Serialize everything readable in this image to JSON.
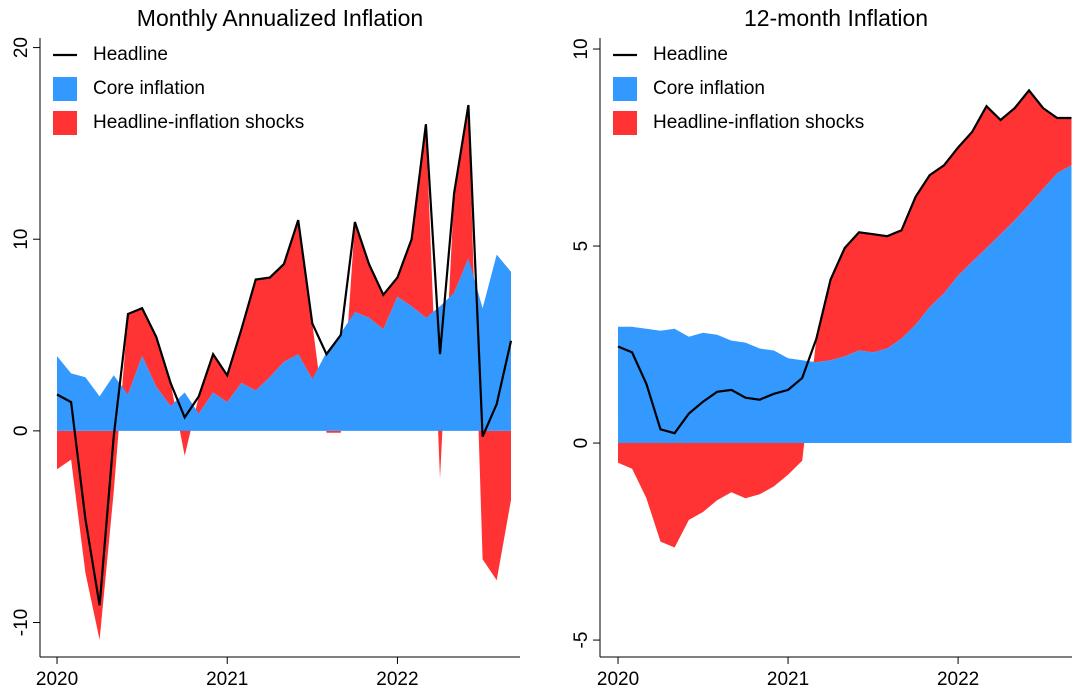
{
  "chart_data": [
    {
      "type": "area",
      "title": "Monthly Annualized Inflation",
      "legend": "upper left",
      "grid": false,
      "x": [
        2020,
        2020.083,
        2020.167,
        2020.25,
        2020.333,
        2020.417,
        2020.5,
        2020.583,
        2020.667,
        2020.75,
        2020.833,
        2020.917,
        2021,
        2021.083,
        2021.167,
        2021.25,
        2021.333,
        2021.417,
        2021.5,
        2021.583,
        2021.667,
        2021.75,
        2021.833,
        2021.917,
        2022,
        2022.083,
        2022.167,
        2022.25,
        2022.333,
        2022.417,
        2022.5,
        2022.583,
        2022.667
      ],
      "xlim": [
        2019.9,
        2022.72
      ],
      "xticks": [
        2020,
        2021,
        2022
      ],
      "ylim": [
        -11.8,
        20.5
      ],
      "yticks": [
        -10,
        0,
        10,
        20
      ],
      "series": [
        {
          "name": "Headline",
          "type": "line",
          "color": "#000000",
          "values": [
            1.9,
            1.5,
            -4.6,
            -9.1,
            -0.3,
            6.1,
            6.4,
            4.9,
            2.5,
            0.7,
            1.8,
            4.0,
            2.9,
            5.3,
            7.9,
            8.0,
            8.7,
            11.0,
            5.6,
            4.0,
            5.0,
            10.9,
            8.7,
            7.1,
            8.0,
            10.0,
            16.0,
            4.0,
            12.4,
            17.0,
            -0.3,
            1.4,
            4.7
          ]
        },
        {
          "name": "Core inflation",
          "type": "area",
          "color": "#3399ff",
          "values": [
            3.9,
            3.0,
            2.8,
            1.8,
            2.9,
            1.9,
            3.9,
            2.3,
            1.3,
            2.0,
            0.9,
            2.0,
            1.5,
            2.5,
            2.1,
            2.8,
            3.6,
            4.0,
            2.7,
            4.1,
            5.1,
            6.2,
            5.9,
            5.3,
            7.0,
            6.5,
            5.9,
            6.5,
            7.2,
            9.0,
            6.4,
            9.2,
            8.3
          ]
        },
        {
          "name": "Headline-inflation shocks",
          "type": "stacked-area",
          "color": "#ff3333",
          "values": [
            -2.0,
            -1.5,
            -7.4,
            -10.9,
            -3.2,
            4.2,
            2.5,
            2.6,
            1.2,
            -1.3,
            0.9,
            2.0,
            1.4,
            2.8,
            5.8,
            5.2,
            5.1,
            7.0,
            2.9,
            -0.1,
            -0.1,
            4.7,
            2.8,
            1.8,
            1.0,
            3.5,
            10.1,
            -2.5,
            5.2,
            8.0,
            -6.7,
            -7.8,
            -3.6
          ]
        }
      ]
    },
    {
      "type": "area",
      "title": "12-month Inflation",
      "legend": "upper left",
      "grid": false,
      "x": [
        2020,
        2020.083,
        2020.167,
        2020.25,
        2020.333,
        2020.417,
        2020.5,
        2020.583,
        2020.667,
        2020.75,
        2020.833,
        2020.917,
        2021,
        2021.083,
        2021.167,
        2021.25,
        2021.333,
        2021.417,
        2021.5,
        2021.583,
        2021.667,
        2021.75,
        2021.833,
        2021.917,
        2022,
        2022.083,
        2022.167,
        2022.25,
        2022.333,
        2022.417,
        2022.5,
        2022.583,
        2022.667
      ],
      "xlim": [
        2019.894,
        2022.67
      ],
      "xticks": [
        2020,
        2021,
        2022
      ],
      "ylim": [
        -5.43,
        10.28
      ],
      "yticks": [
        -5,
        0,
        5,
        10
      ],
      "series": [
        {
          "name": "Headline",
          "type": "line",
          "color": "#000000",
          "values": [
            2.45,
            2.3,
            1.5,
            0.35,
            0.25,
            0.75,
            1.05,
            1.3,
            1.35,
            1.15,
            1.1,
            1.25,
            1.35,
            1.65,
            2.65,
            4.15,
            4.95,
            5.35,
            5.3,
            5.25,
            5.4,
            6.25,
            6.8,
            7.05,
            7.5,
            7.9,
            8.55,
            8.2,
            8.5,
            8.95,
            8.5,
            8.25,
            8.25
          ]
        },
        {
          "name": "Core inflation",
          "type": "area",
          "color": "#3399ff",
          "values": [
            2.95,
            2.95,
            2.9,
            2.85,
            2.9,
            2.7,
            2.8,
            2.75,
            2.6,
            2.55,
            2.4,
            2.35,
            2.15,
            2.1,
            2.05,
            2.1,
            2.2,
            2.35,
            2.3,
            2.4,
            2.65,
            3.0,
            3.45,
            3.8,
            4.25,
            4.6,
            4.95,
            5.3,
            5.65,
            6.05,
            6.45,
            6.85,
            7.05
          ]
        },
        {
          "name": "Headline-inflation shocks",
          "type": "stacked-area",
          "color": "#ff3333",
          "values": [
            -0.5,
            -0.65,
            -1.4,
            -2.5,
            -2.65,
            -1.95,
            -1.75,
            -1.45,
            -1.25,
            -1.4,
            -1.3,
            -1.1,
            -0.8,
            -0.45,
            0.6,
            2.05,
            2.75,
            3.0,
            3.0,
            2.85,
            2.75,
            3.25,
            3.35,
            3.25,
            3.25,
            3.3,
            3.6,
            2.9,
            2.85,
            2.9,
            2.05,
            1.4,
            1.2
          ]
        }
      ]
    }
  ]
}
